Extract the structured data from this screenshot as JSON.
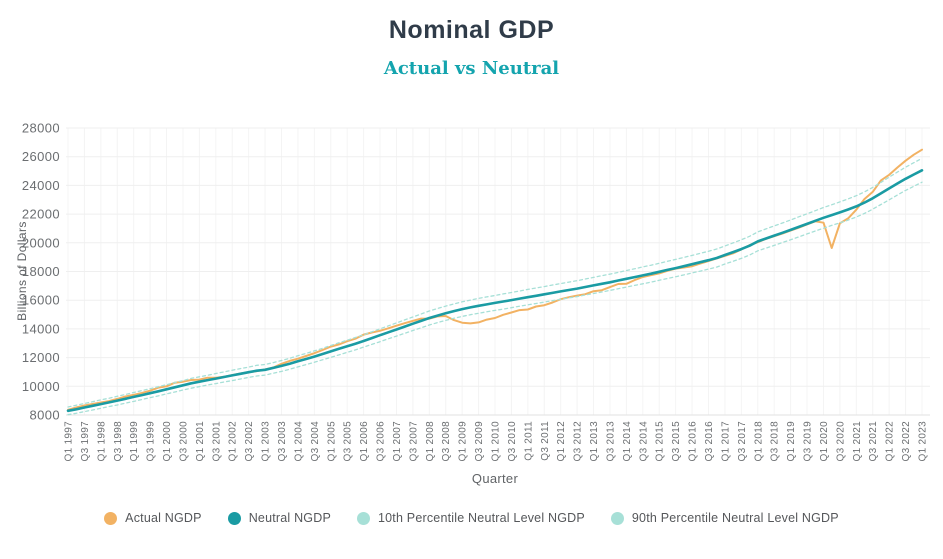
{
  "header": {
    "title": "Nominal GDP",
    "subtitle": "Actual vs Neutral"
  },
  "colors": {
    "title": "#303c49",
    "subtitle_accent": "#14a4ae",
    "actual_line": "#F2B263",
    "neutral_line": "#1A9BA3",
    "percentile_band": "#A7E0D7",
    "grid": "#efefef",
    "axis_text": "#6b6e71"
  },
  "chart_data": {
    "type": "line",
    "title": "Nominal GDP",
    "subtitle": "Actual vs Neutral",
    "xlabel": "Quarter",
    "ylabel": "Billions of Dollars",
    "ylim": [
      8000,
      28000
    ],
    "ytick_step": 2000,
    "xtick_every": 2,
    "grid": true,
    "legend_position": "bottom",
    "x": [
      "Q1 1997",
      "Q2 1997",
      "Q3 1997",
      "Q4 1997",
      "Q1 1998",
      "Q2 1998",
      "Q3 1998",
      "Q4 1998",
      "Q1 1999",
      "Q2 1999",
      "Q3 1999",
      "Q4 1999",
      "Q1 2000",
      "Q2 2000",
      "Q3 2000",
      "Q4 2000",
      "Q1 2001",
      "Q2 2001",
      "Q3 2001",
      "Q4 2001",
      "Q1 2002",
      "Q2 2002",
      "Q3 2002",
      "Q4 2002",
      "Q1 2003",
      "Q2 2003",
      "Q3 2003",
      "Q4 2003",
      "Q1 2004",
      "Q2 2004",
      "Q3 2004",
      "Q4 2004",
      "Q1 2005",
      "Q2 2005",
      "Q3 2005",
      "Q4 2005",
      "Q1 2006",
      "Q2 2006",
      "Q3 2006",
      "Q4 2006",
      "Q1 2007",
      "Q2 2007",
      "Q3 2007",
      "Q4 2007",
      "Q1 2008",
      "Q2 2008",
      "Q3 2008",
      "Q4 2008",
      "Q1 2009",
      "Q2 2009",
      "Q3 2009",
      "Q4 2009",
      "Q1 2010",
      "Q2 2010",
      "Q3 2010",
      "Q4 2010",
      "Q1 2011",
      "Q2 2011",
      "Q3 2011",
      "Q4 2011",
      "Q1 2012",
      "Q2 2012",
      "Q3 2012",
      "Q4 2012",
      "Q1 2013",
      "Q2 2013",
      "Q3 2013",
      "Q4 2013",
      "Q1 2014",
      "Q2 2014",
      "Q3 2014",
      "Q4 2014",
      "Q1 2015",
      "Q2 2015",
      "Q3 2015",
      "Q4 2015",
      "Q1 2016",
      "Q2 2016",
      "Q3 2016",
      "Q4 2016",
      "Q1 2017",
      "Q2 2017",
      "Q3 2017",
      "Q4 2017",
      "Q1 2018",
      "Q2 2018",
      "Q3 2018",
      "Q4 2018",
      "Q1 2019",
      "Q2 2019",
      "Q3 2019",
      "Q4 2019",
      "Q1 2020",
      "Q2 2020",
      "Q3 2020",
      "Q4 2020",
      "Q1 2021",
      "Q2 2021",
      "Q3 2021",
      "Q4 2021",
      "Q1 2022",
      "Q2 2022",
      "Q3 2022",
      "Q4 2022",
      "Q1 2023"
    ],
    "series": [
      {
        "name": "Actual NGDP",
        "color": "#F2B263",
        "style": "solid",
        "width": 2,
        "values": [
          8360,
          8520,
          8660,
          8770,
          8870,
          8970,
          9120,
          9290,
          9410,
          9530,
          9690,
          9900,
          10000,
          10250,
          10320,
          10440,
          10470,
          10600,
          10600,
          10660,
          10780,
          10890,
          10980,
          11060,
          11170,
          11310,
          11570,
          11770,
          11920,
          12110,
          12310,
          12530,
          12770,
          12920,
          13140,
          13320,
          13600,
          13750,
          13870,
          14040,
          14220,
          14400,
          14560,
          14720,
          14710,
          14870,
          14900,
          14610,
          14430,
          14380,
          14450,
          14650,
          14760,
          14980,
          15140,
          15310,
          15350,
          15560,
          15650,
          15840,
          16070,
          16210,
          16320,
          16420,
          16630,
          16700,
          16910,
          17130,
          17140,
          17400,
          17620,
          17740,
          17870,
          18050,
          18200,
          18280,
          18370,
          18550,
          18730,
          18910,
          19090,
          19270,
          19530,
          19830,
          20040,
          20280,
          20460,
          20640,
          20850,
          21050,
          21280,
          21500,
          21400,
          19640,
          21360,
          21700,
          22310,
          23050,
          23550,
          24350,
          24740,
          25250,
          25720,
          26140,
          26490
        ]
      },
      {
        "name": "Neutral NGDP",
        "color": "#1A9BA3",
        "style": "solid",
        "width": 2.6,
        "values": [
          8290,
          8400,
          8520,
          8640,
          8760,
          8880,
          9000,
          9130,
          9260,
          9390,
          9520,
          9650,
          9790,
          9930,
          10070,
          10210,
          10320,
          10430,
          10540,
          10650,
          10760,
          10870,
          10980,
          11090,
          11150,
          11280,
          11420,
          11570,
          11740,
          11900,
          12070,
          12250,
          12430,
          12610,
          12790,
          12970,
          13160,
          13360,
          13560,
          13760,
          13960,
          14160,
          14360,
          14560,
          14760,
          14930,
          15090,
          15240,
          15380,
          15500,
          15610,
          15710,
          15810,
          15910,
          16010,
          16110,
          16210,
          16310,
          16410,
          16510,
          16610,
          16710,
          16810,
          16920,
          17030,
          17140,
          17250,
          17370,
          17490,
          17610,
          17730,
          17850,
          17980,
          18110,
          18240,
          18370,
          18510,
          18650,
          18790,
          18940,
          19150,
          19350,
          19560,
          19800,
          20100,
          20300,
          20500,
          20700,
          20900,
          21110,
          21320,
          21530,
          21740,
          21930,
          22120,
          22320,
          22540,
          22800,
          23100,
          23440,
          23790,
          24130,
          24460,
          24760,
          25050
        ]
      },
      {
        "name": "10th Percentile Neutral Level NGDP",
        "color": "#A7E0D7",
        "style": "dashed",
        "width": 1.3,
        "values": [
          8020,
          8120,
          8240,
          8350,
          8470,
          8590,
          8700,
          8830,
          8950,
          9080,
          9210,
          9330,
          9470,
          9600,
          9740,
          9870,
          9980,
          10090,
          10190,
          10300,
          10400,
          10510,
          10620,
          10720,
          10780,
          10910,
          11040,
          11190,
          11350,
          11510,
          11670,
          11850,
          12020,
          12190,
          12370,
          12540,
          12730,
          12920,
          13110,
          13310,
          13500,
          13690,
          13890,
          14080,
          14270,
          14440,
          14590,
          14740,
          14870,
          14990,
          15090,
          15190,
          15290,
          15380,
          15480,
          15580,
          15680,
          15770,
          15870,
          15970,
          16060,
          16160,
          16250,
          16360,
          16470,
          16570,
          16680,
          16800,
          16910,
          17030,
          17140,
          17260,
          17390,
          17510,
          17640,
          17760,
          17900,
          18030,
          18170,
          18310,
          18520,
          18710,
          18910,
          19150,
          19440,
          19630,
          19820,
          20020,
          20210,
          20410,
          20620,
          20820,
          21020,
          21210,
          21390,
          21580,
          21800,
          22050,
          22340,
          22670,
          23000,
          23330,
          23650,
          23940,
          24220
        ]
      },
      {
        "name": "90th Percentile Neutral Level NGDP",
        "color": "#A7E0D7",
        "style": "dashed",
        "width": 1.3,
        "values": [
          8560,
          8680,
          8800,
          8930,
          9050,
          9170,
          9300,
          9430,
          9570,
          9700,
          9830,
          9970,
          10110,
          10260,
          10400,
          10550,
          10660,
          10770,
          10890,
          11000,
          11120,
          11230,
          11340,
          11460,
          11520,
          11650,
          11800,
          11950,
          12130,
          12290,
          12470,
          12650,
          12840,
          13030,
          13210,
          13400,
          13590,
          13800,
          14010,
          14210,
          14420,
          14630,
          14830,
          15040,
          15250,
          15420,
          15590,
          15740,
          15890,
          16010,
          16130,
          16230,
          16330,
          16440,
          16540,
          16640,
          16750,
          16850,
          16950,
          17060,
          17160,
          17260,
          17360,
          17480,
          17590,
          17710,
          17820,
          17940,
          18070,
          18190,
          18320,
          18440,
          18570,
          18710,
          18840,
          18980,
          19120,
          19270,
          19410,
          19570,
          19780,
          19990,
          20210,
          20450,
          20760,
          20970,
          21180,
          21380,
          21590,
          21810,
          22020,
          22240,
          22460,
          22650,
          22850,
          23060,
          23280,
          23550,
          23860,
          24210,
          24580,
          24930,
          25270,
          25580,
          25880
        ]
      }
    ]
  }
}
